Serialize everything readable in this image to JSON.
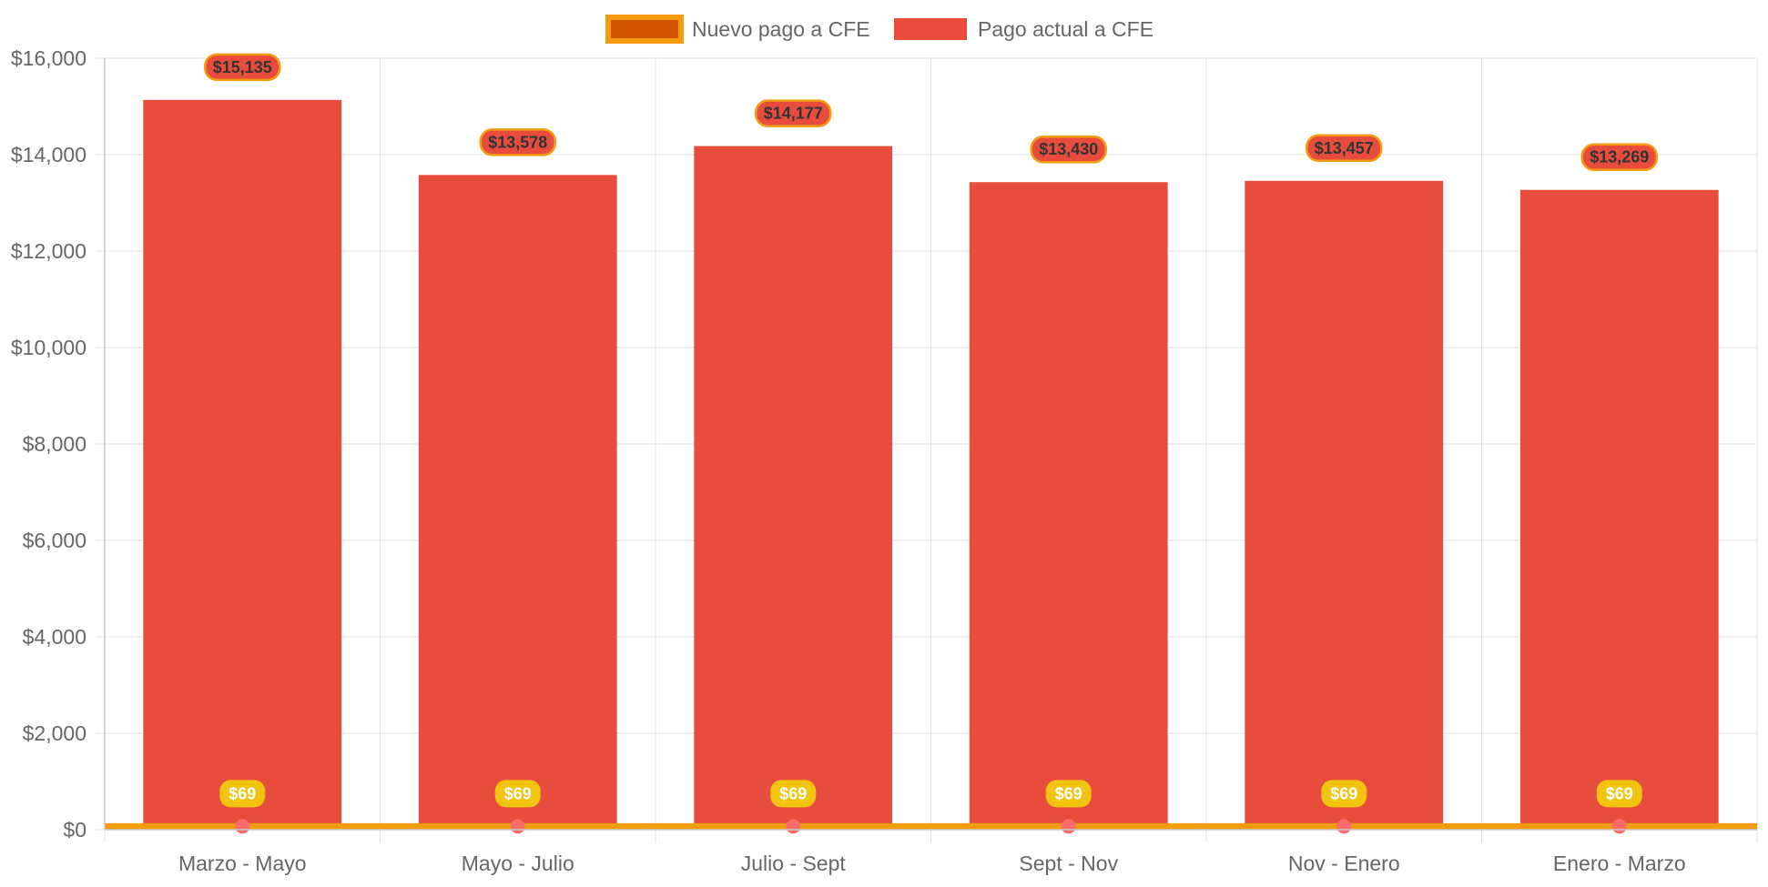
{
  "chart_data": {
    "type": "bar",
    "categories": [
      "Marzo - Mayo",
      "Mayo - Julio",
      "Julio - Sept",
      "Sept - Nov",
      "Nov - Enero",
      "Enero - Marzo"
    ],
    "series": [
      {
        "name": "Nuevo pago a CFE",
        "type": "line",
        "values": [
          69,
          69,
          69,
          69,
          69,
          69
        ],
        "labels": [
          "$69",
          "$69",
          "$69",
          "$69",
          "$69",
          "$69"
        ],
        "color": "#f39c12",
        "legend_fill": "#d35400",
        "point_color": "#ff6b6b",
        "label_bg": "#f1c40f"
      },
      {
        "name": "Pago actual a CFE",
        "type": "bar",
        "values": [
          15135,
          13578,
          14177,
          13430,
          13457,
          13269
        ],
        "labels": [
          "$15,135",
          "$13,578",
          "$14,177",
          "$13,430",
          "$13,457",
          "$13,269"
        ],
        "color": "#e74c3c",
        "label_border": "#f39c12"
      }
    ],
    "ylim": [
      0,
      16000
    ],
    "yticks": [
      0,
      2000,
      4000,
      6000,
      8000,
      10000,
      12000,
      14000,
      16000
    ],
    "ytick_labels": [
      "$0",
      "$2,000",
      "$4,000",
      "$6,000",
      "$8,000",
      "$10,000",
      "$12,000",
      "$14,000",
      "$16,000"
    ],
    "grid": true,
    "legend_position": "top",
    "colors": {
      "grid": "#e0e0e0",
      "axis_text": "#666666"
    }
  }
}
